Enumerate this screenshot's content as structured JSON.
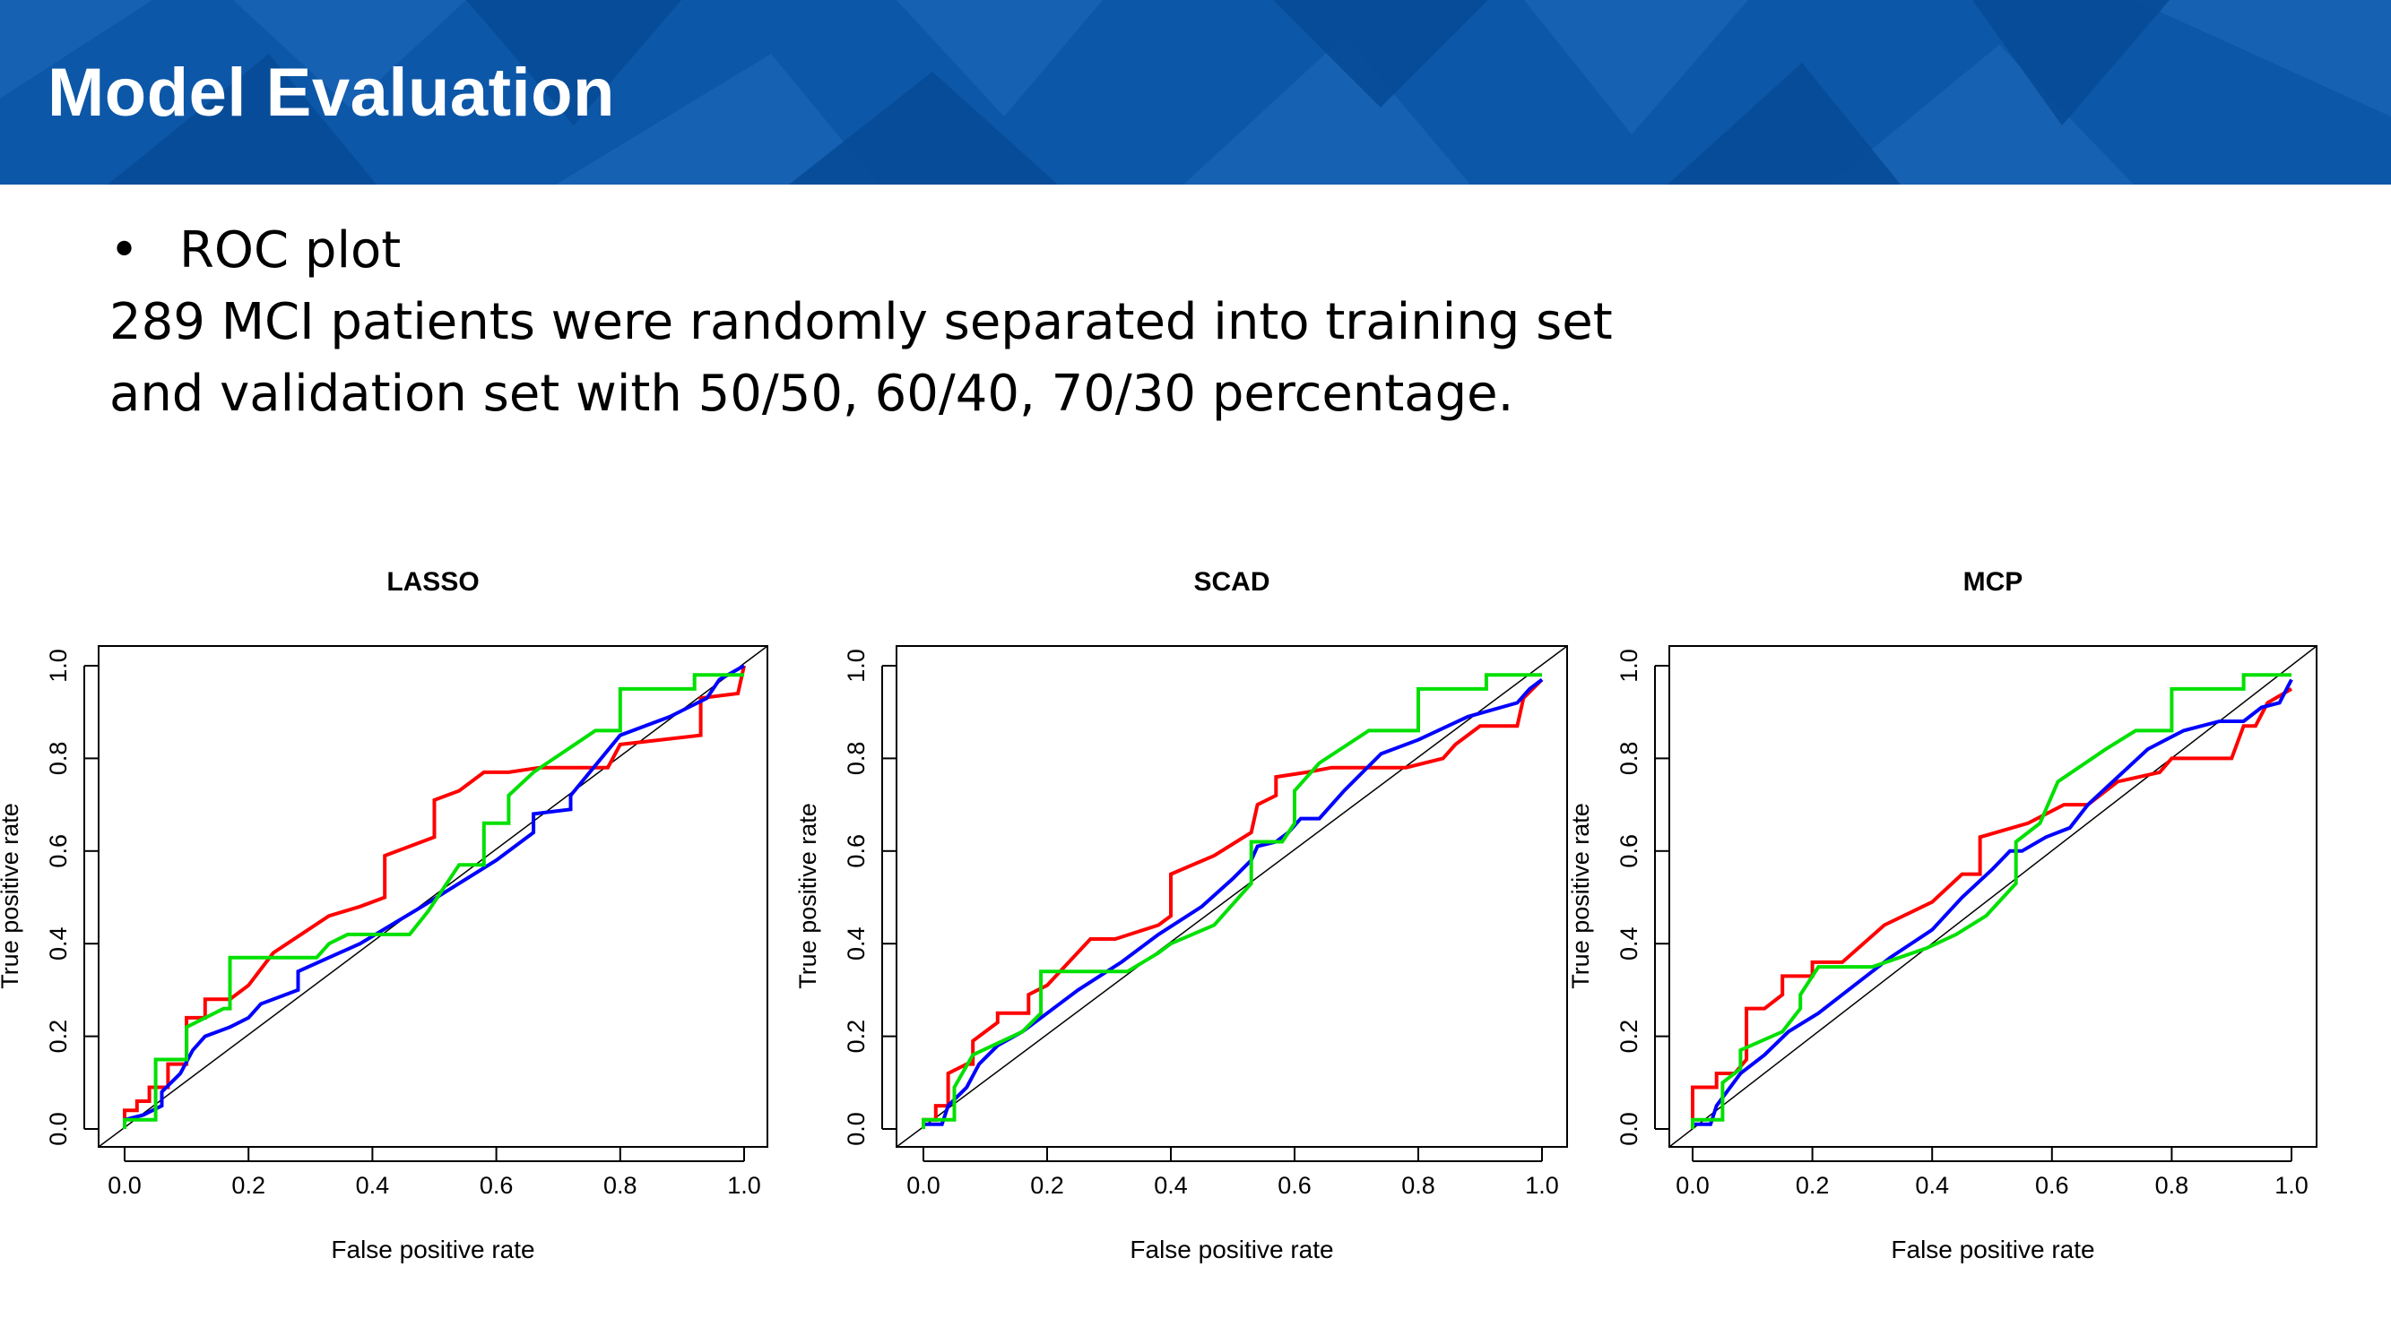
{
  "slide": {
    "title": "Model Evaluation",
    "bullet": "ROC plot",
    "paragraph_line1": "289 MCI patients were randomly separated into training set",
    "paragraph_line2": "and validation set with 50/50, 60/40, 70/30 percentage."
  },
  "colors": {
    "banner": "#0c57a8",
    "series": [
      "#ff0000",
      "#0000ff",
      "#00e000"
    ],
    "diagonal": "#000000"
  },
  "chart_data": [
    {
      "type": "line",
      "title": "LASSO",
      "xlabel": "False positive rate",
      "ylabel": "True positive rate",
      "xlim": [
        0,
        1
      ],
      "ylim": [
        0,
        1
      ],
      "xticks": [
        "0.0",
        "0.2",
        "0.4",
        "0.6",
        "0.8",
        "1.0"
      ],
      "yticks": [
        "0.0",
        "0.2",
        "0.4",
        "0.6",
        "0.8",
        "1.0"
      ],
      "diagonal": true,
      "series": [
        {
          "color": "#ff0000",
          "points": [
            [
              0,
              0
            ],
            [
              0,
              0.04
            ],
            [
              0.02,
              0.04
            ],
            [
              0.02,
              0.06
            ],
            [
              0.04,
              0.06
            ],
            [
              0.04,
              0.09
            ],
            [
              0.07,
              0.09
            ],
            [
              0.07,
              0.14
            ],
            [
              0.1,
              0.14
            ],
            [
              0.1,
              0.24
            ],
            [
              0.13,
              0.24
            ],
            [
              0.13,
              0.28
            ],
            [
              0.17,
              0.28
            ],
            [
              0.2,
              0.31
            ],
            [
              0.24,
              0.38
            ],
            [
              0.33,
              0.46
            ],
            [
              0.38,
              0.48
            ],
            [
              0.42,
              0.5
            ],
            [
              0.42,
              0.59
            ],
            [
              0.5,
              0.63
            ],
            [
              0.5,
              0.71
            ],
            [
              0.54,
              0.73
            ],
            [
              0.58,
              0.77
            ],
            [
              0.62,
              0.77
            ],
            [
              0.67,
              0.78
            ],
            [
              0.78,
              0.78
            ],
            [
              0.8,
              0.83
            ],
            [
              0.93,
              0.85
            ],
            [
              0.93,
              0.93
            ],
            [
              0.99,
              0.94
            ],
            [
              1,
              1
            ]
          ]
        },
        {
          "color": "#0000ff",
          "points": [
            [
              0,
              0
            ],
            [
              0,
              0.02
            ],
            [
              0.03,
              0.03
            ],
            [
              0.06,
              0.05
            ],
            [
              0.06,
              0.08
            ],
            [
              0.09,
              0.12
            ],
            [
              0.11,
              0.17
            ],
            [
              0.13,
              0.2
            ],
            [
              0.17,
              0.22
            ],
            [
              0.2,
              0.24
            ],
            [
              0.22,
              0.27
            ],
            [
              0.28,
              0.3
            ],
            [
              0.28,
              0.34
            ],
            [
              0.38,
              0.4
            ],
            [
              0.48,
              0.48
            ],
            [
              0.6,
              0.58
            ],
            [
              0.66,
              0.64
            ],
            [
              0.66,
              0.68
            ],
            [
              0.72,
              0.69
            ],
            [
              0.72,
              0.72
            ],
            [
              0.8,
              0.85
            ],
            [
              0.88,
              0.89
            ],
            [
              0.94,
              0.93
            ],
            [
              0.96,
              0.97
            ],
            [
              1,
              1
            ]
          ]
        },
        {
          "color": "#00e000",
          "points": [
            [
              0,
              0
            ],
            [
              0,
              0.02
            ],
            [
              0.05,
              0.02
            ],
            [
              0.05,
              0.15
            ],
            [
              0.1,
              0.15
            ],
            [
              0.1,
              0.22
            ],
            [
              0.16,
              0.26
            ],
            [
              0.17,
              0.26
            ],
            [
              0.17,
              0.37
            ],
            [
              0.31,
              0.37
            ],
            [
              0.33,
              0.4
            ],
            [
              0.36,
              0.42
            ],
            [
              0.46,
              0.42
            ],
            [
              0.49,
              0.47
            ],
            [
              0.54,
              0.57
            ],
            [
              0.58,
              0.57
            ],
            [
              0.58,
              0.66
            ],
            [
              0.62,
              0.66
            ],
            [
              0.62,
              0.72
            ],
            [
              0.66,
              0.77
            ],
            [
              0.76,
              0.86
            ],
            [
              0.8,
              0.86
            ],
            [
              0.8,
              0.95
            ],
            [
              0.92,
              0.95
            ],
            [
              0.92,
              0.98
            ],
            [
              1,
              0.98
            ]
          ]
        }
      ]
    },
    {
      "type": "line",
      "title": "SCAD",
      "xlabel": "False positive rate",
      "ylabel": "True positive rate",
      "xlim": [
        0,
        1
      ],
      "ylim": [
        0,
        1
      ],
      "xticks": [
        "0.0",
        "0.2",
        "0.4",
        "0.6",
        "0.8",
        "1.0"
      ],
      "yticks": [
        "0.0",
        "0.2",
        "0.4",
        "0.6",
        "0.8",
        "1.0"
      ],
      "diagonal": true,
      "series": [
        {
          "color": "#ff0000",
          "points": [
            [
              0,
              0
            ],
            [
              0,
              0.02
            ],
            [
              0.02,
              0.02
            ],
            [
              0.02,
              0.05
            ],
            [
              0.04,
              0.05
            ],
            [
              0.04,
              0.12
            ],
            [
              0.07,
              0.14
            ],
            [
              0.08,
              0.14
            ],
            [
              0.08,
              0.19
            ],
            [
              0.12,
              0.23
            ],
            [
              0.12,
              0.25
            ],
            [
              0.17,
              0.25
            ],
            [
              0.17,
              0.29
            ],
            [
              0.2,
              0.31
            ],
            [
              0.27,
              0.41
            ],
            [
              0.31,
              0.41
            ],
            [
              0.38,
              0.44
            ],
            [
              0.4,
              0.46
            ],
            [
              0.4,
              0.55
            ],
            [
              0.47,
              0.59
            ],
            [
              0.53,
              0.64
            ],
            [
              0.54,
              0.7
            ],
            [
              0.57,
              0.72
            ],
            [
              0.57,
              0.76
            ],
            [
              0.62,
              0.77
            ],
            [
              0.66,
              0.78
            ],
            [
              0.78,
              0.78
            ],
            [
              0.84,
              0.8
            ],
            [
              0.86,
              0.83
            ],
            [
              0.9,
              0.87
            ],
            [
              0.96,
              0.87
            ],
            [
              0.97,
              0.93
            ],
            [
              1,
              0.97
            ]
          ]
        },
        {
          "color": "#0000ff",
          "points": [
            [
              0,
              0
            ],
            [
              0,
              0.01
            ],
            [
              0.03,
              0.01
            ],
            [
              0.04,
              0.05
            ],
            [
              0.07,
              0.09
            ],
            [
              0.09,
              0.14
            ],
            [
              0.12,
              0.18
            ],
            [
              0.16,
              0.21
            ],
            [
              0.2,
              0.25
            ],
            [
              0.25,
              0.3
            ],
            [
              0.32,
              0.36
            ],
            [
              0.38,
              0.42
            ],
            [
              0.45,
              0.48
            ],
            [
              0.5,
              0.54
            ],
            [
              0.53,
              0.58
            ],
            [
              0.54,
              0.61
            ],
            [
              0.57,
              0.62
            ],
            [
              0.59,
              0.64
            ],
            [
              0.61,
              0.67
            ],
            [
              0.64,
              0.67
            ],
            [
              0.68,
              0.73
            ],
            [
              0.74,
              0.81
            ],
            [
              0.8,
              0.84
            ],
            [
              0.88,
              0.89
            ],
            [
              0.96,
              0.92
            ],
            [
              0.98,
              0.95
            ],
            [
              1,
              0.97
            ]
          ]
        },
        {
          "color": "#00e000",
          "points": [
            [
              0,
              0
            ],
            [
              0,
              0.02
            ],
            [
              0.05,
              0.02
            ],
            [
              0.05,
              0.09
            ],
            [
              0.08,
              0.16
            ],
            [
              0.16,
              0.21
            ],
            [
              0.19,
              0.25
            ],
            [
              0.19,
              0.34
            ],
            [
              0.33,
              0.34
            ],
            [
              0.38,
              0.38
            ],
            [
              0.4,
              0.4
            ],
            [
              0.47,
              0.44
            ],
            [
              0.53,
              0.53
            ],
            [
              0.53,
              0.62
            ],
            [
              0.58,
              0.62
            ],
            [
              0.6,
              0.66
            ],
            [
              0.6,
              0.73
            ],
            [
              0.64,
              0.79
            ],
            [
              0.72,
              0.86
            ],
            [
              0.8,
              0.86
            ],
            [
              0.8,
              0.95
            ],
            [
              0.91,
              0.95
            ],
            [
              0.91,
              0.98
            ],
            [
              1,
              0.98
            ]
          ]
        }
      ]
    },
    {
      "type": "line",
      "title": "MCP",
      "xlabel": "False positive rate",
      "ylabel": "True positive rate",
      "xlim": [
        0,
        1
      ],
      "ylim": [
        0,
        1
      ],
      "xticks": [
        "0.0",
        "0.2",
        "0.4",
        "0.6",
        "0.8",
        "1.0"
      ],
      "yticks": [
        "0.0",
        "0.2",
        "0.4",
        "0.6",
        "0.8",
        "1.0"
      ],
      "diagonal": true,
      "series": [
        {
          "color": "#ff0000",
          "points": [
            [
              0,
              0
            ],
            [
              0,
              0.09
            ],
            [
              0.04,
              0.09
            ],
            [
              0.04,
              0.12
            ],
            [
              0.07,
              0.12
            ],
            [
              0.09,
              0.15
            ],
            [
              0.09,
              0.26
            ],
            [
              0.12,
              0.26
            ],
            [
              0.15,
              0.29
            ],
            [
              0.15,
              0.33
            ],
            [
              0.2,
              0.33
            ],
            [
              0.2,
              0.36
            ],
            [
              0.25,
              0.36
            ],
            [
              0.32,
              0.44
            ],
            [
              0.4,
              0.49
            ],
            [
              0.45,
              0.55
            ],
            [
              0.48,
              0.55
            ],
            [
              0.48,
              0.63
            ],
            [
              0.56,
              0.66
            ],
            [
              0.62,
              0.7
            ],
            [
              0.66,
              0.7
            ],
            [
              0.71,
              0.75
            ],
            [
              0.78,
              0.77
            ],
            [
              0.8,
              0.8
            ],
            [
              0.9,
              0.8
            ],
            [
              0.92,
              0.87
            ],
            [
              0.94,
              0.87
            ],
            [
              0.96,
              0.92
            ],
            [
              1,
              0.95
            ]
          ]
        },
        {
          "color": "#0000ff",
          "points": [
            [
              0,
              0
            ],
            [
              0,
              0.01
            ],
            [
              0.03,
              0.01
            ],
            [
              0.04,
              0.05
            ],
            [
              0.08,
              0.12
            ],
            [
              0.12,
              0.16
            ],
            [
              0.16,
              0.21
            ],
            [
              0.21,
              0.25
            ],
            [
              0.27,
              0.31
            ],
            [
              0.33,
              0.37
            ],
            [
              0.4,
              0.43
            ],
            [
              0.45,
              0.5
            ],
            [
              0.5,
              0.56
            ],
            [
              0.53,
              0.6
            ],
            [
              0.55,
              0.6
            ],
            [
              0.59,
              0.63
            ],
            [
              0.63,
              0.65
            ],
            [
              0.66,
              0.7
            ],
            [
              0.71,
              0.76
            ],
            [
              0.76,
              0.82
            ],
            [
              0.82,
              0.86
            ],
            [
              0.88,
              0.88
            ],
            [
              0.92,
              0.88
            ],
            [
              0.95,
              0.91
            ],
            [
              0.98,
              0.92
            ],
            [
              1,
              0.97
            ]
          ]
        },
        {
          "color": "#00e000",
          "points": [
            [
              0,
              0
            ],
            [
              0,
              0.02
            ],
            [
              0.05,
              0.02
            ],
            [
              0.05,
              0.1
            ],
            [
              0.08,
              0.13
            ],
            [
              0.08,
              0.17
            ],
            [
              0.15,
              0.21
            ],
            [
              0.18,
              0.26
            ],
            [
              0.18,
              0.29
            ],
            [
              0.21,
              0.35
            ],
            [
              0.3,
              0.35
            ],
            [
              0.39,
              0.39
            ],
            [
              0.44,
              0.42
            ],
            [
              0.49,
              0.46
            ],
            [
              0.54,
              0.53
            ],
            [
              0.54,
              0.62
            ],
            [
              0.58,
              0.66
            ],
            [
              0.61,
              0.75
            ],
            [
              0.69,
              0.82
            ],
            [
              0.74,
              0.86
            ],
            [
              0.8,
              0.86
            ],
            [
              0.8,
              0.95
            ],
            [
              0.92,
              0.95
            ],
            [
              0.92,
              0.98
            ],
            [
              1,
              0.98
            ]
          ]
        }
      ]
    }
  ]
}
